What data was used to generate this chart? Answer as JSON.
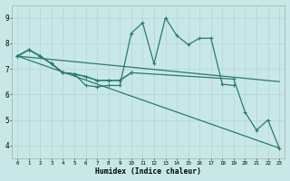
{
  "background_color": "#c8e8e8",
  "grid_color": "#b8d8d8",
  "line_color": "#2a7a6a",
  "xlabel": "Humidex (Indice chaleur)",
  "xlim": [
    -0.5,
    23.5
  ],
  "ylim": [
    3.5,
    9.5
  ],
  "yticks": [
    4,
    5,
    6,
    7,
    8,
    9
  ],
  "xticks": [
    0,
    1,
    2,
    3,
    4,
    5,
    6,
    7,
    8,
    9,
    10,
    11,
    12,
    13,
    14,
    15,
    16,
    17,
    18,
    19,
    20,
    21,
    22,
    23
  ],
  "curve1_x": [
    0,
    1,
    2,
    3,
    4,
    5,
    6,
    7,
    8,
    9,
    10,
    11,
    12,
    13,
    14,
    15,
    16,
    17,
    18,
    19
  ],
  "curve1_y": [
    7.5,
    7.75,
    7.5,
    7.2,
    6.85,
    6.8,
    6.35,
    6.3,
    6.35,
    6.35,
    8.4,
    8.8,
    7.2,
    9.0,
    8.3,
    7.95,
    8.2,
    8.2,
    6.4,
    6.35
  ],
  "curve2_x": [
    0,
    1,
    2,
    3,
    4,
    5,
    6,
    7,
    8,
    9,
    10
  ],
  "curve2_y": [
    7.5,
    7.75,
    7.5,
    7.2,
    6.85,
    6.8,
    6.7,
    6.55,
    6.55,
    6.55,
    6.85
  ],
  "curve3_x": [
    0,
    1,
    2,
    3,
    4,
    5,
    6,
    7,
    8,
    9,
    10,
    19,
    20,
    21,
    22,
    23
  ],
  "curve3_y": [
    7.5,
    7.75,
    7.5,
    7.2,
    6.85,
    6.8,
    6.7,
    6.55,
    6.55,
    6.55,
    6.85,
    6.6,
    5.3,
    4.6,
    5.0,
    3.9
  ],
  "line1_x": [
    0,
    23
  ],
  "line1_y": [
    7.5,
    6.5
  ],
  "line2_x": [
    0,
    23
  ],
  "line2_y": [
    7.5,
    3.9
  ]
}
